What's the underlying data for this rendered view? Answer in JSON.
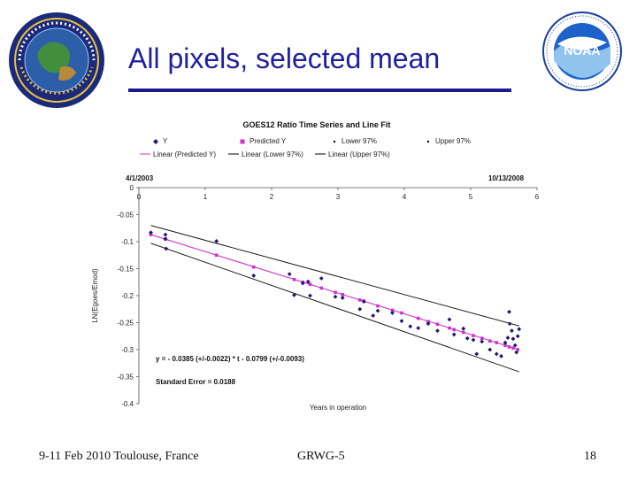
{
  "slide": {
    "title": "All pixels, selected mean",
    "footer_left": "9-11 Feb 2010 Toulouse, France",
    "footer_center": "GRWG-5",
    "page_number": "18",
    "title_color": "#1f1f9f"
  },
  "logos": {
    "left": "mission-seal-icon",
    "right": "noaa-logo-icon",
    "right_text": "NOAA"
  },
  "chart_data": {
    "type": "scatter",
    "title": "GOES12 Ratio Time Series and Line Fit",
    "xlabel": "Years in operation",
    "ylabel": "LN(Egoes/Emod)",
    "xlim": [
      0,
      6
    ],
    "ylim": [
      -0.4,
      0
    ],
    "x_ticks": [
      "0",
      "1",
      "2",
      "3",
      "4",
      "5",
      "6"
    ],
    "y_ticks": [
      "0",
      "-0.05",
      "-0.1",
      "-0.15",
      "-0.2",
      "-0.25",
      "-0.3",
      "-0.35",
      "-0.4"
    ],
    "top_left_label": "4/1/2003",
    "top_right_label": "10/13/2008",
    "legend_position": "top",
    "legend": [
      "Y",
      "Predicted Y",
      "Lower 97%",
      "Upper 97%",
      "Linear (Predicted Y)",
      "Linear (Lower 97%)",
      "Linear (Upper 97%)"
    ],
    "equation": "y = - 0.0385 (+/-0.0022) * t - 0.0799 (+/-0.0093)",
    "standard_error": "Standard Error = 0.0188",
    "colors": {
      "y": "#1a1a6e",
      "predicted": "#cc33cc",
      "bounds": "#000000"
    },
    "series": [
      {
        "name": "Y",
        "points": [
          [
            0.18,
            -0.083
          ],
          [
            0.4,
            -0.087
          ],
          [
            0.4,
            -0.095
          ],
          [
            0.41,
            -0.113
          ],
          [
            1.17,
            -0.099
          ],
          [
            1.73,
            -0.163
          ],
          [
            2.27,
            -0.16
          ],
          [
            2.34,
            -0.199
          ],
          [
            2.47,
            -0.177
          ],
          [
            2.55,
            -0.174
          ],
          [
            2.58,
            -0.2
          ],
          [
            2.75,
            -0.168
          ],
          [
            2.96,
            -0.202
          ],
          [
            3.07,
            -0.204
          ],
          [
            3.33,
            -0.225
          ],
          [
            3.39,
            -0.211
          ],
          [
            3.53,
            -0.237
          ],
          [
            3.6,
            -0.228
          ],
          [
            3.82,
            -0.232
          ],
          [
            3.96,
            -0.247
          ],
          [
            4.09,
            -0.257
          ],
          [
            4.21,
            -0.26
          ],
          [
            4.36,
            -0.252
          ],
          [
            4.5,
            -0.265
          ],
          [
            4.68,
            -0.244
          ],
          [
            4.75,
            -0.272
          ],
          [
            4.89,
            -0.261
          ],
          [
            4.95,
            -0.279
          ],
          [
            5.04,
            -0.282
          ],
          [
            5.09,
            -0.308
          ],
          [
            5.17,
            -0.285
          ],
          [
            5.29,
            -0.3
          ],
          [
            5.39,
            -0.308
          ],
          [
            5.46,
            -0.312
          ],
          [
            5.52,
            -0.287
          ],
          [
            5.56,
            -0.278
          ],
          [
            5.58,
            -0.23
          ],
          [
            5.59,
            -0.252
          ],
          [
            5.62,
            -0.265
          ],
          [
            5.64,
            -0.28
          ],
          [
            5.67,
            -0.292
          ],
          [
            5.69,
            -0.305
          ],
          [
            5.71,
            -0.275
          ],
          [
            5.73,
            -0.262
          ]
        ]
      },
      {
        "name": "Predicted Y",
        "points": [
          [
            0.18,
            -0.087
          ],
          [
            0.4,
            -0.095
          ],
          [
            1.17,
            -0.125
          ],
          [
            1.73,
            -0.147
          ],
          [
            2.34,
            -0.17
          ],
          [
            2.47,
            -0.175
          ],
          [
            2.58,
            -0.179
          ],
          [
            2.75,
            -0.186
          ],
          [
            2.96,
            -0.194
          ],
          [
            3.07,
            -0.198
          ],
          [
            3.33,
            -0.208
          ],
          [
            3.39,
            -0.21
          ],
          [
            3.6,
            -0.219
          ],
          [
            3.82,
            -0.227
          ],
          [
            3.96,
            -0.232
          ],
          [
            4.21,
            -0.242
          ],
          [
            4.36,
            -0.248
          ],
          [
            4.5,
            -0.253
          ],
          [
            4.68,
            -0.26
          ],
          [
            4.75,
            -0.263
          ],
          [
            4.89,
            -0.268
          ],
          [
            5.04,
            -0.274
          ],
          [
            5.17,
            -0.279
          ],
          [
            5.29,
            -0.284
          ],
          [
            5.39,
            -0.287
          ],
          [
            5.52,
            -0.292
          ],
          [
            5.58,
            -0.295
          ],
          [
            5.64,
            -0.297
          ],
          [
            5.71,
            -0.3
          ]
        ]
      },
      {
        "name": "Linear (Predicted Y)",
        "line": [
          [
            0.18,
            -0.087
          ],
          [
            5.73,
            -0.3
          ]
        ]
      },
      {
        "name": "Linear (Lower 97%)",
        "line": [
          [
            0.18,
            -0.103
          ],
          [
            5.73,
            -0.341
          ]
        ]
      },
      {
        "name": "Linear (Upper 97%)",
        "line": [
          [
            0.18,
            -0.07
          ],
          [
            5.73,
            -0.256
          ]
        ]
      }
    ]
  }
}
